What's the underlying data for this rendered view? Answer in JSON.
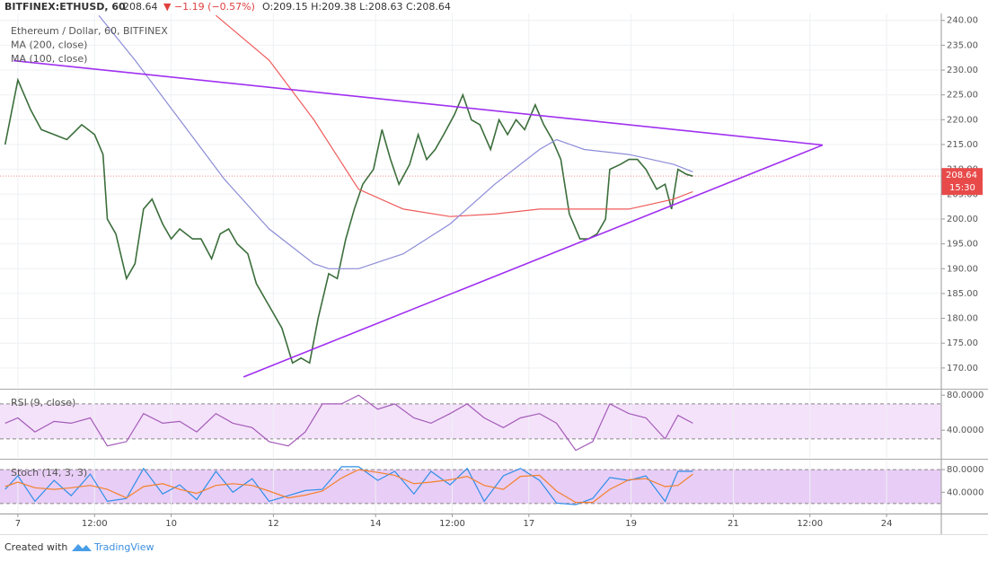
{
  "header": {
    "symbol": "BITFINEX:ETHUSD, 60",
    "last": "208.64",
    "change": "▼ −1.19 (−0.57%)",
    "ohlc": "O:209.15 H:209.38 L:208.63 C:208.64"
  },
  "footer": {
    "created": "Created with",
    "brand": "TradingView"
  },
  "chart_data": [
    {
      "type": "line",
      "xlim": [
        -8.4,
        433.7
      ],
      "ylim": [
        166,
        241.4
      ],
      "yticks": [
        {
          "value": 170,
          "label": "170.00"
        },
        {
          "value": 175,
          "label": "175.00"
        },
        {
          "value": 180,
          "label": "180.00"
        },
        {
          "value": 185,
          "label": "185.00"
        },
        {
          "value": 190,
          "label": "190.00"
        },
        {
          "value": 195,
          "label": "195.00"
        },
        {
          "value": 200,
          "label": "200.00"
        },
        {
          "value": 205,
          "label": "205.00"
        },
        {
          "value": 210,
          "label": "210.00"
        },
        {
          "value": 215,
          "label": "215.00"
        },
        {
          "value": 220,
          "label": "220.00"
        },
        {
          "value": 225,
          "label": "225.00"
        },
        {
          "value": 230,
          "label": "230.00"
        },
        {
          "value": 235,
          "label": "235.00"
        },
        {
          "value": 240,
          "label": "240.00"
        }
      ],
      "grid": true,
      "last_price": {
        "value": 208.64,
        "label": "208.64",
        "countdown": "15:30",
        "color": "#e84a4a"
      },
      "series": [
        {
          "name": "Ethereum / Dollar, 60, BITFINEX",
          "color": "#3b6e3b",
          "x": [
            -6,
            0,
            6,
            11,
            17,
            23,
            30,
            36,
            40,
            42,
            46,
            51,
            55,
            59,
            63,
            68,
            72,
            76,
            82,
            86,
            91,
            95,
            99,
            103,
            108,
            112,
            116,
            120,
            124,
            129,
            133,
            137,
            141,
            146,
            150,
            154,
            158,
            162,
            167,
            171,
            175,
            179,
            184,
            188,
            192,
            196,
            200,
            205,
            209,
            213,
            217,
            222,
            226,
            230,
            234,
            238,
            243,
            247,
            251,
            255,
            259,
            264,
            268,
            272,
            276,
            278,
            283,
            287,
            291,
            295,
            300,
            304,
            307,
            310,
            314,
            317
          ],
          "values": [
            215,
            228,
            222,
            218,
            217,
            216,
            219,
            217,
            213,
            200,
            197,
            188,
            191,
            202,
            204,
            199,
            196,
            198,
            196,
            196,
            192,
            197,
            198,
            195,
            193,
            187,
            184,
            181,
            178,
            171,
            172,
            171,
            180,
            189,
            188,
            196,
            202,
            207,
            210,
            218,
            212,
            207,
            211,
            217,
            212,
            214,
            217,
            221,
            225,
            220,
            219,
            214,
            220,
            217,
            220,
            218,
            223,
            219,
            216,
            212,
            201,
            196,
            196,
            197,
            200,
            210,
            211,
            212,
            212,
            210,
            206,
            207,
            202,
            210,
            209,
            208.64
          ]
        },
        {
          "name": "MA (200, close)",
          "color": "#f05a5a",
          "x": [
            93,
            118,
            139,
            160,
            181,
            203,
            224,
            245,
            266,
            287,
            308,
            317
          ],
          "values": [
            241,
            232,
            220,
            206,
            202,
            200.5,
            201,
            202,
            202,
            202,
            204,
            205.5
          ]
        },
        {
          "name": "MA (100, close)",
          "color": "#8c8cd8",
          "x": [
            38,
            55,
            76,
            97,
            118,
            139,
            146,
            160,
            181,
            203,
            224,
            245,
            253,
            266,
            287,
            308,
            317
          ],
          "values": [
            241,
            232,
            220,
            208,
            198,
            191,
            190,
            190,
            193,
            199,
            207,
            214,
            216,
            214,
            213,
            211,
            209.5
          ]
        }
      ],
      "trendlines": [
        {
          "color": "#a030f0",
          "x": [
            -2,
            378
          ],
          "values": [
            231.9,
            214.9
          ]
        },
        {
          "color": "#a030f0",
          "x": [
            106,
            378
          ],
          "values": [
            168.2,
            214.9
          ]
        }
      ]
    },
    {
      "type": "line",
      "xlim": [
        -8.4,
        433.7
      ],
      "ylim": [
        8.4,
        85.3
      ],
      "yticks": [
        {
          "value": 40,
          "label": "40.0000"
        },
        {
          "value": 80,
          "label": "80.0000"
        }
      ],
      "band": [
        30,
        70
      ],
      "band_color": "#f4e2fb",
      "series": [
        {
          "name": "RSI (9, close)",
          "color": "#a45bb8",
          "x": [
            -6,
            0,
            8,
            17,
            25,
            34,
            42,
            51,
            59,
            68,
            76,
            84,
            93,
            101,
            110,
            118,
            127,
            135,
            143,
            152,
            160,
            169,
            177,
            186,
            194,
            203,
            211,
            219,
            228,
            236,
            245,
            253,
            262,
            270,
            278,
            287,
            295,
            304,
            310,
            317
          ],
          "values": [
            48,
            54,
            38,
            50,
            48,
            54,
            22,
            27,
            59,
            48,
            50,
            38,
            59,
            48,
            43,
            27,
            22,
            38,
            70,
            70,
            80,
            64,
            70,
            54,
            48,
            59,
            70,
            54,
            43,
            54,
            59,
            48,
            17,
            27,
            70,
            59,
            54,
            30,
            57,
            48
          ]
        }
      ]
    },
    {
      "type": "line",
      "title": "Stoch (14, 3, 3)",
      "xlim": [
        -8.4,
        433.7
      ],
      "ylim": [
        2.4,
        96
      ],
      "yticks": [
        {
          "value": 40,
          "label": "40.0000"
        },
        {
          "value": 80,
          "label": "80.0000"
        }
      ],
      "xticks": [
        {
          "value": 0,
          "label": "7"
        },
        {
          "value": 36,
          "label": "12:00"
        },
        {
          "value": 72,
          "label": "10"
        },
        {
          "value": 120,
          "label": "12"
        },
        {
          "value": 168,
          "label": "14"
        },
        {
          "value": 204,
          "label": "12:00"
        },
        {
          "value": 240,
          "label": "17"
        },
        {
          "value": 288,
          "label": "19"
        },
        {
          "value": 336,
          "label": "21"
        },
        {
          "value": 372,
          "label": "12:00"
        },
        {
          "value": 408,
          "label": "24"
        }
      ],
      "band": [
        20,
        80
      ],
      "band_color": "#e8cdf6",
      "series": [
        {
          "color": "#2f8fe8",
          "x": [
            -6,
            0,
            8,
            17,
            25,
            34,
            42,
            51,
            59,
            68,
            76,
            84,
            93,
            101,
            110,
            118,
            127,
            135,
            143,
            152,
            160,
            169,
            177,
            186,
            194,
            203,
            211,
            219,
            228,
            236,
            245,
            253,
            262,
            270,
            278,
            287,
            295,
            304,
            310,
            317
          ],
          "values": [
            45,
            69,
            24,
            61,
            34,
            72,
            24,
            29,
            82,
            37,
            53,
            27,
            77,
            40,
            64,
            24,
            34,
            43,
            45,
            85,
            85,
            61,
            77,
            37,
            77,
            53,
            82,
            24,
            69,
            82,
            61,
            21,
            18,
            29,
            66,
            61,
            69,
            24,
            77,
            77
          ]
        },
        {
          "color": "#f4812b",
          "x": [
            -6,
            0,
            8,
            17,
            25,
            34,
            42,
            51,
            59,
            68,
            76,
            84,
            93,
            101,
            110,
            118,
            127,
            135,
            143,
            152,
            160,
            169,
            177,
            186,
            194,
            203,
            211,
            219,
            228,
            236,
            245,
            253,
            262,
            270,
            278,
            287,
            295,
            304,
            310,
            317
          ],
          "values": [
            50,
            58,
            48,
            45,
            48,
            52,
            45,
            30,
            50,
            55,
            45,
            38,
            52,
            55,
            52,
            42,
            30,
            35,
            42,
            65,
            80,
            75,
            70,
            55,
            58,
            62,
            68,
            52,
            45,
            68,
            70,
            42,
            22,
            22,
            45,
            62,
            64,
            50,
            52,
            72
          ]
        }
      ]
    }
  ]
}
